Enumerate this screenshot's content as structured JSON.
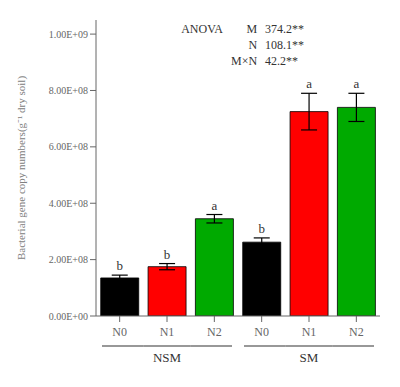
{
  "chart_data": {
    "type": "bar",
    "categories": [
      "N0",
      "N1",
      "N2",
      "N0",
      "N1",
      "N2"
    ],
    "groups": [
      "NSM",
      "NSM",
      "NSM",
      "SM",
      "SM",
      "SM"
    ],
    "values": [
      135000000.0,
      175000000.0,
      345000000.0,
      262000000.0,
      725000000.0,
      740000000.0
    ],
    "errors": [
      10000000.0,
      11000000.0,
      15000000.0,
      15000000.0,
      65000000.0,
      50000000.0
    ],
    "colors": [
      "#000000",
      "#ff0000",
      "#00aa00",
      "#000000",
      "#ff0000",
      "#00aa00"
    ],
    "letters": [
      "b",
      "b",
      "a",
      "b",
      "a",
      "a"
    ],
    "ylabel": "Bacterial gene copy numbers(g⁻¹ dry soil)",
    "ylim": [
      0,
      1050000000.0
    ],
    "yticks": [
      {
        "value": 0,
        "label": "0.00E+00"
      },
      {
        "value": 200000000.0,
        "label": "2.00E+08"
      },
      {
        "value": 400000000.0,
        "label": "4.00E+08"
      },
      {
        "value": 600000000.0,
        "label": "6.00E+08"
      },
      {
        "value": 800000000.0,
        "label": "8.00E+08"
      },
      {
        "value": 1000000000.0,
        "label": "1.00E+09"
      }
    ],
    "annotation": {
      "title": "ANOVA",
      "rows": [
        [
          "M",
          "374.2**"
        ],
        [
          "N",
          "108.1**"
        ],
        [
          "M×N",
          "42.2**"
        ]
      ]
    },
    "grid": false
  }
}
